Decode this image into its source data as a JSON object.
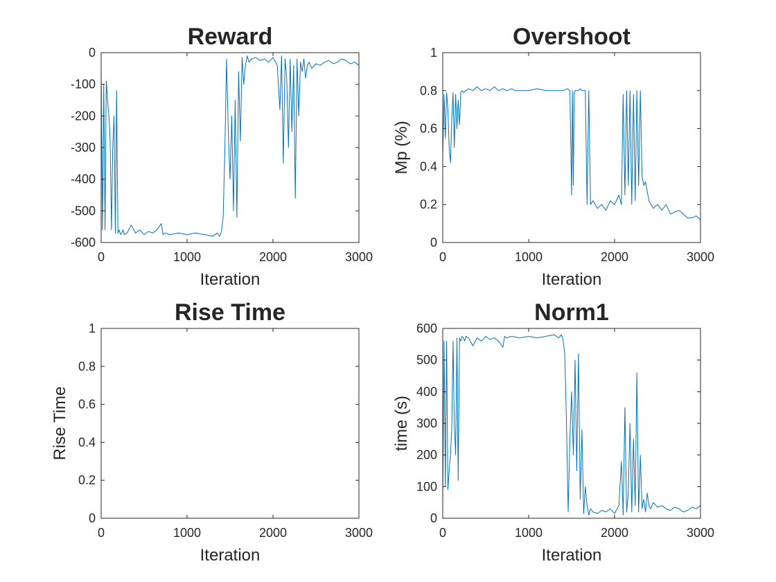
{
  "chart_data": [
    {
      "type": "line",
      "title": "Reward",
      "xlabel": "Iteration",
      "ylabel": "",
      "xlim": [
        0,
        3000
      ],
      "ylim": [
        -600,
        0
      ],
      "xticks": [
        "0",
        "1000",
        "2000",
        "3000"
      ],
      "yticks": [
        "-600",
        "-500",
        "-400",
        "-300",
        "-200",
        "-100",
        "0"
      ],
      "series": [
        {
          "x": [
            0,
            15,
            30,
            45,
            60,
            75,
            90,
            105,
            120,
            135,
            150,
            165,
            180,
            195,
            210,
            225,
            240,
            255,
            270,
            300,
            350,
            400,
            450,
            500,
            550,
            600,
            650,
            700,
            720,
            740,
            800,
            900,
            1000,
            1100,
            1200,
            1300,
            1350,
            1380,
            1400,
            1420,
            1440,
            1460,
            1480,
            1500,
            1520,
            1540,
            1560,
            1580,
            1600,
            1620,
            1640,
            1660,
            1680,
            1700,
            1720,
            1750,
            1800,
            1850,
            1900,
            1950,
            2000,
            2050,
            2080,
            2100,
            2120,
            2140,
            2160,
            2180,
            2200,
            2220,
            2240,
            2260,
            2280,
            2300,
            2320,
            2340,
            2360,
            2380,
            2400,
            2420,
            2450,
            2500,
            2550,
            2600,
            2650,
            2700,
            2750,
            2800,
            2850,
            2900,
            2950,
            3000
          ],
          "y": [
            -50,
            -560,
            -100,
            -560,
            -90,
            -150,
            -200,
            -280,
            -560,
            -300,
            -200,
            -570,
            -120,
            -570,
            -560,
            -575,
            -570,
            -560,
            -575,
            -570,
            -545,
            -570,
            -560,
            -575,
            -565,
            -570,
            -560,
            -540,
            -575,
            -570,
            -575,
            -570,
            -575,
            -570,
            -575,
            -580,
            -570,
            -580,
            -565,
            -520,
            -300,
            -20,
            -250,
            -400,
            -200,
            -500,
            -150,
            -520,
            -60,
            -280,
            -15,
            -100,
            -40,
            -10,
            -30,
            -20,
            -15,
            -25,
            -20,
            -30,
            -15,
            -40,
            -180,
            -10,
            -350,
            -20,
            -80,
            -300,
            -20,
            -250,
            -40,
            -460,
            -20,
            -200,
            -30,
            -60,
            -20,
            -80,
            -40,
            -30,
            -50,
            -35,
            -40,
            -30,
            -25,
            -35,
            -30,
            -20,
            -25,
            -35,
            -30,
            -40
          ]
        }
      ]
    },
    {
      "type": "line",
      "title": "Overshoot",
      "xlabel": "Iteration",
      "ylabel": "Mp (%)",
      "xlim": [
        0,
        3000
      ],
      "ylim": [
        0,
        1
      ],
      "xticks": [
        "0",
        "1000",
        "2000",
        "3000"
      ],
      "yticks": [
        "0",
        "0.2",
        "0.4",
        "0.6",
        "0.8",
        "1"
      ],
      "series": [
        {
          "x": [
            0,
            15,
            30,
            45,
            60,
            75,
            90,
            105,
            120,
            135,
            150,
            165,
            180,
            195,
            210,
            225,
            240,
            270,
            300,
            350,
            400,
            450,
            500,
            550,
            600,
            650,
            700,
            750,
            800,
            850,
            900,
            1000,
            1100,
            1200,
            1300,
            1400,
            1450,
            1480,
            1500,
            1510,
            1520,
            1530,
            1540,
            1560,
            1580,
            1600,
            1620,
            1640,
            1660,
            1680,
            1700,
            1720,
            1750,
            1800,
            1850,
            1900,
            1950,
            2000,
            2050,
            2080,
            2100,
            2120,
            2140,
            2160,
            2180,
            2200,
            2220,
            2240,
            2260,
            2280,
            2300,
            2320,
            2340,
            2360,
            2380,
            2400,
            2450,
            2500,
            2550,
            2600,
            2650,
            2700,
            2750,
            2800,
            2850,
            2900,
            2950,
            3000
          ],
          "y": [
            0.45,
            0.78,
            0.55,
            0.79,
            0.7,
            0.5,
            0.42,
            0.65,
            0.79,
            0.5,
            0.78,
            0.6,
            0.75,
            0.62,
            0.79,
            0.8,
            0.79,
            0.8,
            0.81,
            0.8,
            0.82,
            0.8,
            0.81,
            0.8,
            0.82,
            0.8,
            0.81,
            0.8,
            0.81,
            0.8,
            0.8,
            0.8,
            0.81,
            0.8,
            0.8,
            0.8,
            0.81,
            0.8,
            0.25,
            0.8,
            0.3,
            0.79,
            0.8,
            0.8,
            0.8,
            0.81,
            0.8,
            0.8,
            0.8,
            0.2,
            0.8,
            0.2,
            0.22,
            0.18,
            0.2,
            0.17,
            0.22,
            0.2,
            0.25,
            0.2,
            0.78,
            0.25,
            0.8,
            0.3,
            0.8,
            0.2,
            0.78,
            0.22,
            0.8,
            0.3,
            0.8,
            0.35,
            0.3,
            0.32,
            0.27,
            0.22,
            0.18,
            0.2,
            0.17,
            0.2,
            0.15,
            0.16,
            0.17,
            0.15,
            0.13,
            0.13,
            0.14,
            0.12
          ]
        }
      ]
    },
    {
      "type": "line",
      "title": "Rise Time",
      "xlabel": "Iteration",
      "ylabel": "Rise Time",
      "xlim": [
        0,
        3000
      ],
      "ylim": [
        0,
        1
      ],
      "xticks": [
        "0",
        "1000",
        "2000",
        "3000"
      ],
      "yticks": [
        "0",
        "0.2",
        "0.4",
        "0.6",
        "0.8",
        "1"
      ],
      "series": [
        {
          "x": [
            0,
            3000
          ],
          "y": [
            0,
            0
          ]
        }
      ]
    },
    {
      "type": "line",
      "title": "Norm1",
      "xlabel": "Iteration",
      "ylabel": "time (s)",
      "xlim": [
        0,
        3000
      ],
      "ylim": [
        0,
        600
      ],
      "xticks": [
        "0",
        "1000",
        "2000",
        "3000"
      ],
      "yticks": [
        "0",
        "100",
        "200",
        "300",
        "400",
        "500",
        "600"
      ],
      "series": [
        {
          "x": [
            0,
            15,
            30,
            45,
            60,
            75,
            90,
            105,
            120,
            135,
            150,
            165,
            180,
            195,
            210,
            225,
            240,
            255,
            270,
            300,
            350,
            400,
            450,
            500,
            550,
            600,
            650,
            700,
            720,
            740,
            800,
            900,
            1000,
            1100,
            1200,
            1300,
            1350,
            1380,
            1400,
            1420,
            1440,
            1460,
            1480,
            1500,
            1520,
            1540,
            1560,
            1580,
            1600,
            1620,
            1640,
            1660,
            1680,
            1700,
            1720,
            1750,
            1800,
            1850,
            1900,
            1950,
            2000,
            2050,
            2080,
            2100,
            2120,
            2140,
            2160,
            2180,
            2200,
            2220,
            2240,
            2260,
            2280,
            2300,
            2320,
            2340,
            2360,
            2380,
            2400,
            2420,
            2450,
            2500,
            2550,
            2600,
            2650,
            2700,
            2750,
            2800,
            2850,
            2900,
            2950,
            3000
          ],
          "y": [
            50,
            560,
            100,
            560,
            90,
            150,
            200,
            280,
            560,
            300,
            200,
            570,
            120,
            570,
            560,
            575,
            570,
            560,
            575,
            570,
            545,
            570,
            560,
            575,
            565,
            570,
            560,
            540,
            575,
            570,
            575,
            570,
            575,
            570,
            575,
            580,
            570,
            580,
            565,
            520,
            300,
            20,
            250,
            400,
            200,
            500,
            150,
            520,
            60,
            280,
            15,
            100,
            40,
            10,
            30,
            20,
            15,
            25,
            20,
            30,
            15,
            40,
            180,
            10,
            350,
            20,
            80,
            300,
            20,
            250,
            40,
            460,
            20,
            200,
            30,
            60,
            20,
            80,
            40,
            30,
            50,
            35,
            40,
            30,
            25,
            35,
            30,
            20,
            25,
            35,
            30,
            40
          ]
        }
      ]
    }
  ]
}
